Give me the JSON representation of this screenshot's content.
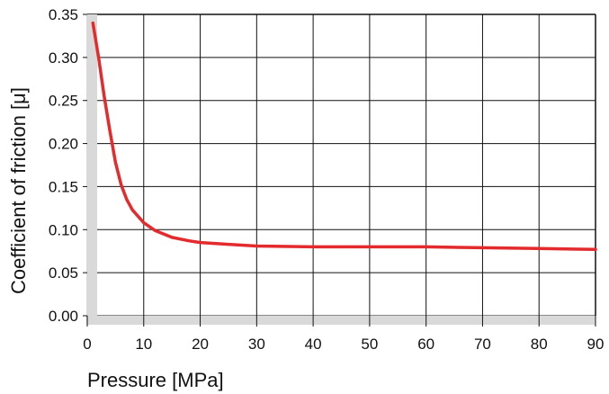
{
  "chart_data": {
    "type": "line",
    "title": "",
    "xlabel": "Pressure [MPa]",
    "ylabel": "Coefficient of friction [μ]",
    "xlim": [
      0,
      90
    ],
    "ylim": [
      0,
      0.35
    ],
    "x_ticks": [
      0,
      10,
      20,
      30,
      40,
      50,
      60,
      70,
      80,
      90
    ],
    "x_tick_labels": [
      "0",
      "10",
      "20",
      "30",
      "40",
      "50",
      "60",
      "70",
      "80",
      "90"
    ],
    "y_ticks": [
      0,
      0.05,
      0.1,
      0.15,
      0.2,
      0.25,
      0.3,
      0.35
    ],
    "y_tick_labels": [
      "0.00",
      "0.05",
      "0.10",
      "0.15",
      "0.20",
      "0.25",
      "0.30",
      "0.35"
    ],
    "grid": true,
    "legend": "none",
    "series": [
      {
        "color": "#e32a2c",
        "x": [
          1,
          2,
          3,
          4,
          5,
          6,
          7,
          8,
          10,
          12,
          15,
          18,
          20,
          25,
          30,
          40,
          50,
          60,
          70,
          80,
          90
        ],
        "y": [
          0.34,
          0.3,
          0.255,
          0.215,
          0.178,
          0.152,
          0.135,
          0.123,
          0.108,
          0.099,
          0.091,
          0.087,
          0.085,
          0.083,
          0.081,
          0.08,
          0.08,
          0.08,
          0.079,
          0.078,
          0.077
        ]
      }
    ],
    "colors": {
      "grid": "#111111",
      "axis_bar": "#d9d9d9",
      "line": "#e32a2c"
    }
  }
}
